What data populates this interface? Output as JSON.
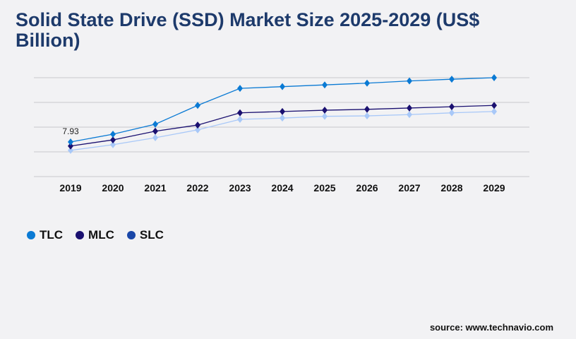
{
  "chart_data": {
    "type": "line",
    "title": "Solid State Drive (SSD) Market Size 2025-2029 (US$ Billion)",
    "xlabel": "",
    "ylabel": "",
    "categories": [
      "2019",
      "2020",
      "2021",
      "2022",
      "2023",
      "2024",
      "2025",
      "2026",
      "2027",
      "2028",
      "2029"
    ],
    "ylim": [
      0,
      22.65
    ],
    "grid": true,
    "legend_position": "bottom-left",
    "series": [
      {
        "name": "TLC",
        "line_color": "#0a7ad4",
        "legend_color": "#0a7ad4",
        "values": [
          7.93,
          9.7,
          12.0,
          16.3,
          20.2,
          20.6,
          21.0,
          21.4,
          21.9,
          22.3,
          22.65
        ]
      },
      {
        "name": "MLC",
        "line_color": "#1a1070",
        "legend_color": "#1a1070",
        "values": [
          7.0,
          8.4,
          10.4,
          11.8,
          14.6,
          14.9,
          15.2,
          15.4,
          15.7,
          16.0,
          16.3
        ]
      },
      {
        "name": "SLC",
        "line_color": "#a8c8f8",
        "legend_color": "#1a47a8",
        "values": [
          6.0,
          7.3,
          8.9,
          10.7,
          13.1,
          13.4,
          13.8,
          13.9,
          14.2,
          14.6,
          14.9
        ]
      }
    ],
    "annotations": [
      {
        "label": "7.93",
        "series": "TLC",
        "category": "2019"
      }
    ]
  },
  "source": "source: www.technavio.com"
}
